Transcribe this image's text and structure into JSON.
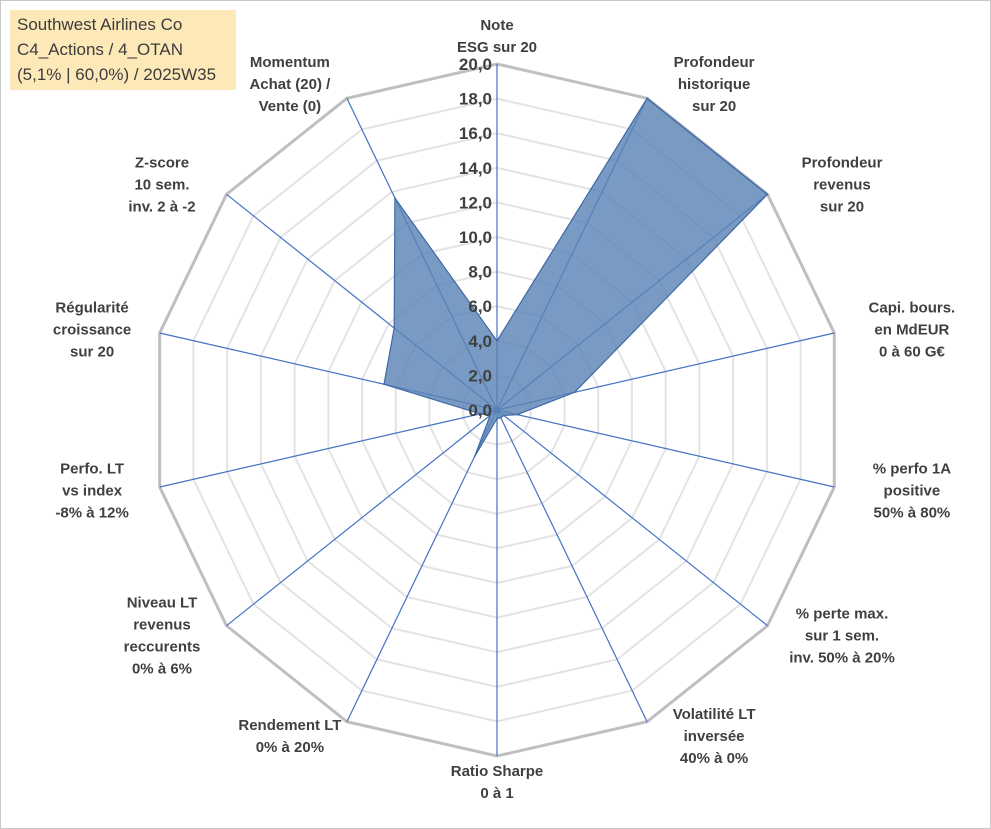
{
  "info": {
    "line1": "Southwest Airlines Co",
    "line2": "C4_Actions / 4_OTAN",
    "line3": "(5,1% | 60,0%) / 2025W35"
  },
  "chart_data": {
    "type": "radar",
    "rmin": 0,
    "rmax": 20,
    "tick_labels": [
      "0,0",
      "2,0",
      "4,0",
      "6,0",
      "8,0",
      "10,0",
      "12,0",
      "14,0",
      "16,0",
      "18,0",
      "20,0"
    ],
    "axes": [
      {
        "lines": [
          "Note",
          "ESG sur 20"
        ],
        "value": 4.0
      },
      {
        "lines": [
          "Profondeur",
          "historique",
          "sur 20"
        ],
        "value": 20.0
      },
      {
        "lines": [
          "Profondeur",
          "revenus",
          "sur 20"
        ],
        "value": 20.0
      },
      {
        "lines": [
          "Capi. bours.",
          "en MdEUR",
          "0 à 60 G€"
        ],
        "value": 4.6
      },
      {
        "lines": [
          "% perfo 1A",
          "positive",
          "50% à 80%"
        ],
        "value": 1.2
      },
      {
        "lines": [
          "% perte max.",
          "sur 1 sem.",
          "inv. 50% à 20%"
        ],
        "value": 0.5
      },
      {
        "lines": [
          "Volatilité LT",
          "inversée",
          "40% à 0%"
        ],
        "value": 0.5
      },
      {
        "lines": [
          "Ratio Sharpe",
          "0 à 1"
        ],
        "value": 0.5
      },
      {
        "lines": [
          "Rendement LT",
          "0% à 20%"
        ],
        "value": 3.0
      },
      {
        "lines": [
          "Niveau LT",
          "revenus",
          "reccurents",
          "0% à 6%"
        ],
        "value": 0.5
      },
      {
        "lines": [
          "Perfo. LT",
          "vs index",
          "-8% à 12%"
        ],
        "value": 1.0
      },
      {
        "lines": [
          "Régularité",
          "croissance",
          "sur 20"
        ],
        "value": 6.7
      },
      {
        "lines": [
          "Z-score",
          "10 sem.",
          "inv. 2 à -2"
        ],
        "value": 7.6
      },
      {
        "lines": [
          "Momentum",
          "Achat (20) /",
          "Vente (0)"
        ],
        "value": 13.6
      }
    ],
    "colors": {
      "fill": "#5b84b6",
      "stroke": "#3f69a6",
      "spoke": "#4472c4",
      "ring": "#e3e3e3",
      "outer_ring": "#bfbfbf",
      "text": "#404040"
    },
    "grid": true,
    "legend": "none"
  }
}
